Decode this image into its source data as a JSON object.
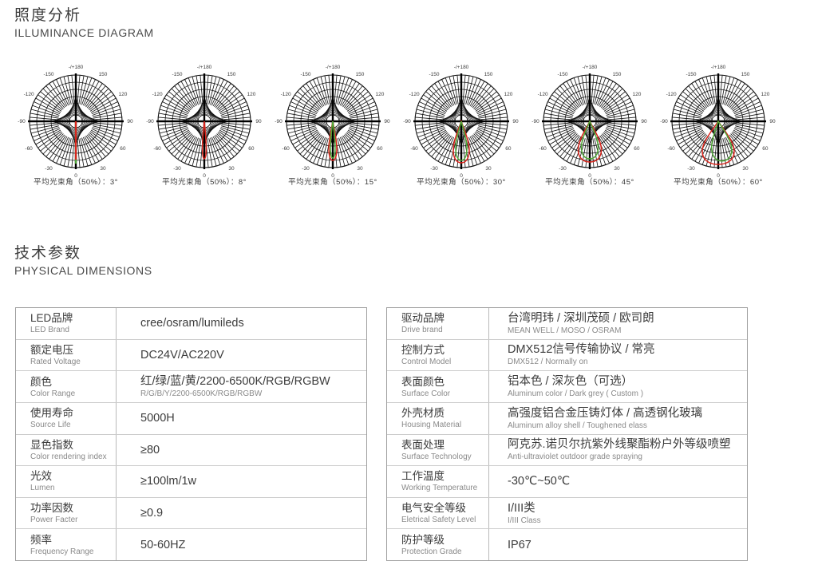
{
  "header": {
    "title_cn": "照度分析",
    "title_en": "ILLUMINANCE DIAGRAM"
  },
  "section2": {
    "title_cn": "技术参数",
    "title_en": "PHYSICAL DIMENSIONS"
  },
  "colors": {
    "beam_red": "#d9251c",
    "beam_green": "#4ea736",
    "grid_black": "#111111"
  },
  "diagrams": {
    "angle_labels": [
      {
        "text": "-/+180",
        "angle": 180
      },
      {
        "text": "150",
        "angle": 150
      },
      {
        "text": "-150",
        "angle": -150
      },
      {
        "text": "120",
        "angle": 120
      },
      {
        "text": "-120",
        "angle": -120
      },
      {
        "text": "90",
        "angle": 90
      },
      {
        "text": "-90",
        "angle": -90
      },
      {
        "text": "60",
        "angle": 60
      },
      {
        "text": "-60",
        "angle": -60
      },
      {
        "text": "30",
        "angle": 30
      },
      {
        "text": "-30",
        "angle": -30
      },
      {
        "text": "0",
        "angle": 0
      }
    ],
    "items": [
      {
        "caption": "平均光束角（50%）：3°",
        "beam_angle_deg": 3,
        "lobes": [
          {
            "color": "beam_green",
            "w": 0,
            "len": 53
          },
          {
            "color": "beam_red",
            "w": 0,
            "len": 48
          }
        ]
      },
      {
        "caption": "平均光束角（50%）：8°",
        "beam_angle_deg": 8,
        "lobes": [
          {
            "color": "beam_red",
            "w": 2.4,
            "len": 47
          }
        ]
      },
      {
        "caption": "平均光束角（50%）：15°",
        "beam_angle_deg": 15,
        "lobes": [
          {
            "color": "beam_red",
            "w": 5,
            "len": 49
          },
          {
            "color": "beam_green",
            "w": 3,
            "len": 46
          }
        ]
      },
      {
        "caption": "平均光束角（50%）：30°",
        "beam_angle_deg": 30,
        "lobes": [
          {
            "color": "beam_red",
            "w": 10,
            "len": 52
          },
          {
            "color": "beam_green",
            "w": 7,
            "len": 49
          }
        ]
      },
      {
        "caption": "平均光束角（50%）：45°",
        "beam_angle_deg": 45,
        "lobes": [
          {
            "color": "beam_red",
            "w": 14.5,
            "len": 51
          },
          {
            "color": "beam_green",
            "w": 10.5,
            "len": 47
          }
        ]
      },
      {
        "caption": "平均光束角（50%）：60°",
        "beam_angle_deg": 60,
        "lobes": [
          {
            "color": "beam_red",
            "w": 20,
            "len": 54
          },
          {
            "color": "beam_green",
            "w": 12.5,
            "len": 50,
            "tilt": -7
          }
        ]
      }
    ]
  },
  "table_left": {
    "rows": [
      {
        "label_cn": "LED品牌",
        "label_en": "LED Brand",
        "value": "cree/osram/lumileds"
      },
      {
        "label_cn": "额定电压",
        "label_en": "Rated Voltage",
        "value": "DC24V/AC220V"
      },
      {
        "label_cn": "颜色",
        "label_en": "Color Range",
        "value": "红/绿/蓝/黄/2200-6500K/RGB/RGBW",
        "value_sub": "R/G/B/Y/2200-6500K/RGB/RGBW"
      },
      {
        "label_cn": "使用寿命",
        "label_en": "Source Life",
        "value": "5000H"
      },
      {
        "label_cn": "显色指数",
        "label_en": "Color rendering index",
        "value": "≥80"
      },
      {
        "label_cn": "光效",
        "label_en": "Lumen",
        "value": "≥100lm/1w"
      },
      {
        "label_cn": "功率因数",
        "label_en": "Power Facter",
        "value": "≥0.9"
      },
      {
        "label_cn": "频率",
        "label_en": "Frequency Range",
        "value": "50-60HZ"
      }
    ]
  },
  "table_right": {
    "rows": [
      {
        "label_cn": "驱动品牌",
        "label_en": "Drive brand",
        "value": "台湾明玮 / 深圳茂硕 / 欧司朗",
        "value_sub": "MEAN WELL / MOSO / OSRAM"
      },
      {
        "label_cn": "控制方式",
        "label_en": "Control Model",
        "value": "DMX512信号传输协议 / 常亮",
        "value_sub": "DMX512 / Normally on"
      },
      {
        "label_cn": "表面颜色",
        "label_en": "Surface Color",
        "value": "铝本色 / 深灰色（可选）",
        "value_sub": "Aluminum color / Dark grey ( Custom )"
      },
      {
        "label_cn": "外壳材质",
        "label_en": "Housing Material",
        "value": "高强度铝合金压铸灯体 / 高透钢化玻璃",
        "value_sub": "Aluminum alloy shell / Toughened elass"
      },
      {
        "label_cn": "表面处理",
        "label_en": "Surface Technology",
        "value": "阿克苏.诺贝尔抗紫外线聚酯粉户外等级喷塑",
        "value_sub": "Anti-ultraviolet outdoor grade spraying"
      },
      {
        "label_cn": "工作温度",
        "label_en": "Working Temperature",
        "value": "-30℃~50℃"
      },
      {
        "label_cn": "电气安全等级",
        "label_en": "Eletrical Safety Level",
        "value": "I/III类",
        "value_sub": "I/III Class"
      },
      {
        "label_cn": "防护等级",
        "label_en": "Protection Grade",
        "value": "IP67"
      }
    ]
  }
}
